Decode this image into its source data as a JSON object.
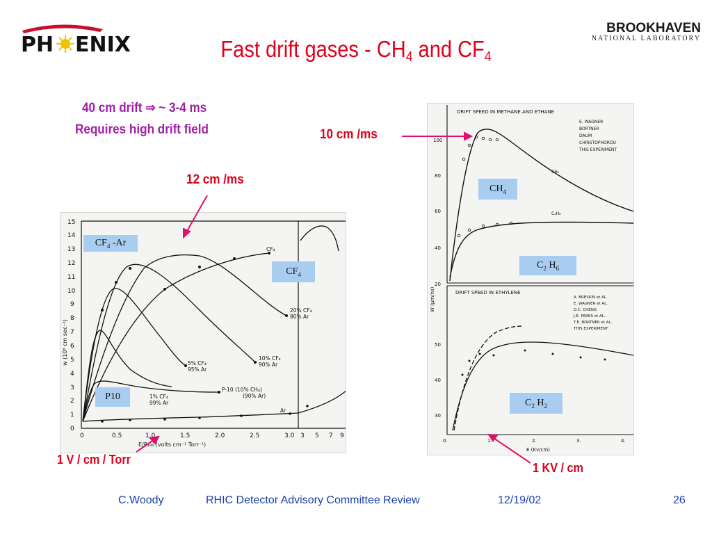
{
  "slide": {
    "title_main": "Fast drift gases - CH",
    "title_sub1": "4",
    "title_mid": " and CF",
    "title_sub2": "4",
    "logo_left": "PH",
    "logo_left_end": "ENIX",
    "logo_right_main": "BROOKHAVEN",
    "logo_right_sub": "NATIONAL LABORATORY"
  },
  "annotations": {
    "drift_line1": "40 cm drift ⇒ ~ 3-4 ms",
    "drift_line2": "Requires high drift field",
    "speed_10": "10 cm /ms",
    "speed_12": "12 cm /ms",
    "field_torr": "1 V / cm / Torr",
    "field_kv": "1 KV / cm"
  },
  "labels": {
    "cf4_ar": "CF",
    "cf4_ar_sub": "4",
    "cf4_ar_end": " -Ar",
    "cf4": "CF",
    "cf4_sub": "4",
    "p10": "P10",
    "ch4": "CH",
    "ch4_sub": "4",
    "c2h6_a": "C",
    "c2h6_s1": "2",
    "c2h6_b": " H",
    "c2h6_s2": "6",
    "c2h2_a": "C",
    "c2h2_s1": "2",
    "c2h2_b": " H",
    "c2h2_s2": "2"
  },
  "left_plot": {
    "ylabel": "w (10⁶ cm sec⁻¹)",
    "xlabel": "E/P₂₉₈ (volts cm⁻¹ Torr⁻¹)",
    "yticks": [
      "0",
      "1",
      "2",
      "3",
      "4",
      "5",
      "6",
      "7",
      "8",
      "9",
      "10",
      "11",
      "12",
      "13",
      "14",
      "15"
    ],
    "xticks": [
      "0",
      "0.5",
      "1.0",
      "1.5",
      "2.0",
      "2.5",
      "3.0",
      "3",
      "5",
      "7",
      "9"
    ],
    "curve_labels": {
      "cf4": "CF₄",
      "cf4_20": "20% CF₄",
      "ar_80": "80% Ar",
      "cf4_10": "10% CF₄",
      "ar_90": "90% Ar",
      "cf4_5": "5% CF₄",
      "ar_95": "95% Ar",
      "cf4_1": "1% CF₄",
      "ar_99": "99% Ar",
      "p10": "P-10 (10% CH₄)",
      "p10_b": "(90% Ar)",
      "ar": "Ar"
    }
  },
  "right_top_plot": {
    "title": "DRIFT SPEED IN METHANE AND ETHANE",
    "legend": [
      "E. WAGNER",
      "BORTNER",
      "DAUM",
      "CHRISTOPHOROU",
      "THIS EXPERIMENT"
    ],
    "yticks": [
      "100",
      "80",
      "60",
      "40",
      "20"
    ],
    "curve_labels": [
      "CH₄",
      "C₂H₆"
    ],
    "ylabel": "W (µm/ns)"
  },
  "right_bottom_plot": {
    "title": "DRIFT SPEED IN ETHYLENE",
    "legend": [
      "A. BRESKIN et AL.",
      "E. WAGNER et AL.",
      "D.C. CHENG",
      "J.E. PARKS et AL.",
      "T.E. BORTNER et AL.",
      "THIS EXPERIMENT"
    ],
    "yticks": [
      "50",
      "40",
      "30"
    ],
    "xticks": [
      "0.",
      "1.",
      "2.",
      "3.",
      "4."
    ],
    "xlabel": "E (Kv/cm)"
  },
  "footer": {
    "author": "C.Woody",
    "event": "RHIC Detector Advisory Committee Review",
    "date": "12/19/02",
    "page": "26"
  },
  "colors": {
    "title_red": "#e0001b",
    "annotation_magenta": "#a020a8",
    "arrow_pink": "#e0106a",
    "label_box_blue": "#a8cdf0",
    "footer_blue": "#1a3fb0"
  }
}
